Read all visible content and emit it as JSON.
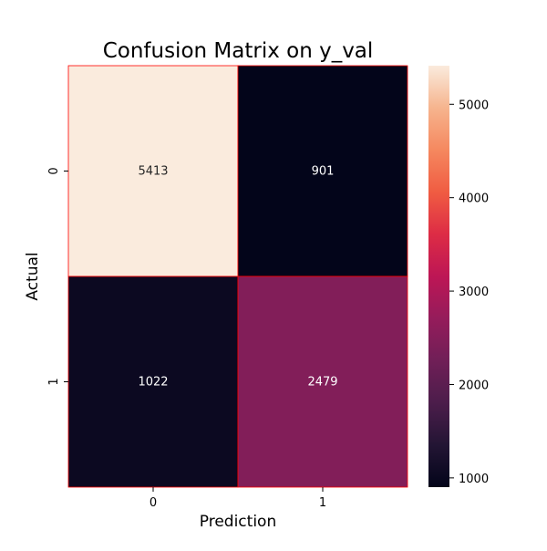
{
  "chart_data": {
    "type": "heatmap",
    "title": "Confusion Matrix on y_val",
    "xlabel": "Prediction",
    "ylabel": "Actual",
    "x_categories": [
      "0",
      "1"
    ],
    "y_categories": [
      "0",
      "1"
    ],
    "values": [
      [
        5413,
        901
      ],
      [
        1022,
        2479
      ]
    ],
    "annotations": [
      "5413",
      "901",
      "1022",
      "2479"
    ],
    "colormap": "rocket",
    "cell_border_color": "#ff0000",
    "annotation_colors": {
      "light_cell": "#262626",
      "dark_cell": "#ffffff"
    },
    "colorbar": {
      "range": [
        901,
        5413
      ],
      "ticks": [
        1000,
        2000,
        3000,
        4000,
        5000
      ],
      "tick_labels": [
        "1000",
        "2000",
        "3000",
        "4000",
        "5000"
      ]
    },
    "grid": false,
    "legend": "colorbar-right"
  }
}
